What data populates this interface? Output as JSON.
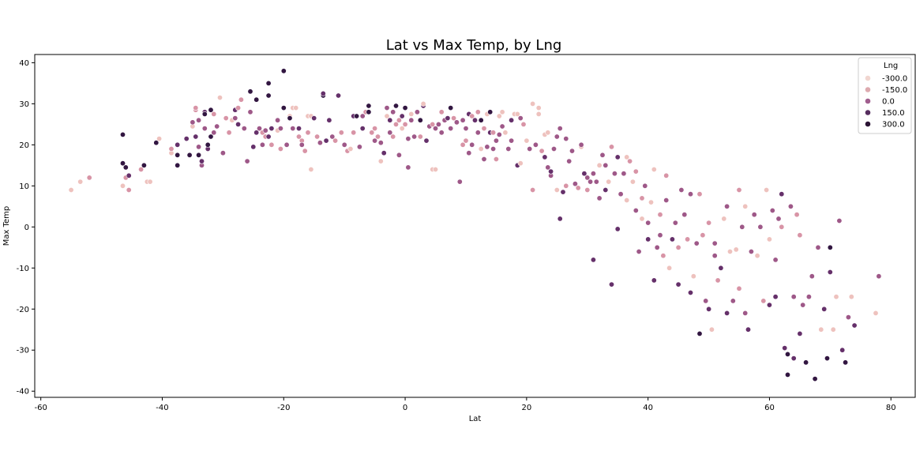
{
  "chart_data": {
    "type": "scatter",
    "title": "Lat vs Max Temp, by Lng",
    "xlabel": "Lat",
    "ylabel": "Max Temp",
    "xlim": [
      -61,
      84
    ],
    "ylim": [
      -41.5,
      42
    ],
    "x_ticks": [
      -60,
      -40,
      -20,
      0,
      20,
      40,
      60,
      80
    ],
    "y_ticks": [
      -40,
      -30,
      -20,
      -10,
      0,
      10,
      20,
      30,
      40
    ],
    "grid": false,
    "legend": {
      "title": "Lng",
      "placement": "top-right",
      "entries": [
        {
          "label": "-300.0",
          "color": "#f1d6d0"
        },
        {
          "label": "-150.0",
          "color": "#ddaaaf"
        },
        {
          "label": "0.0",
          "color": "#a05e8e"
        },
        {
          "label": "150.0",
          "color": "#562d5e"
        },
        {
          "label": "300.0",
          "color": "#2b1434"
        }
      ]
    },
    "colors": {
      "low": "#eec2be",
      "midlow": "#d894a6",
      "mid": "#9e5888",
      "midhigh": "#65306a",
      "high": "#321641"
    },
    "points": [
      [
        -55,
        9,
        -60
      ],
      [
        -53.5,
        11,
        -40
      ],
      [
        -52,
        12,
        -20
      ],
      [
        -46.5,
        10,
        -40
      ],
      [
        -46,
        12,
        20
      ],
      [
        -45.5,
        9,
        -10
      ],
      [
        -46.5,
        22.5,
        190
      ],
      [
        -46.5,
        15.5,
        170
      ],
      [
        -46,
        14.5,
        200
      ],
      [
        -45.5,
        12.5,
        150
      ],
      [
        -43.5,
        14,
        -20
      ],
      [
        -43,
        15,
        180
      ],
      [
        -42.5,
        11,
        -30
      ],
      [
        -42,
        11,
        -50
      ],
      [
        -41,
        20.5,
        180
      ],
      [
        -40.5,
        21.5,
        -60
      ],
      [
        -38.5,
        18,
        -30
      ],
      [
        -38.5,
        19,
        -10
      ],
      [
        -37.5,
        17.5,
        200
      ],
      [
        -37.5,
        15,
        180
      ],
      [
        -37.5,
        20,
        160
      ],
      [
        -36,
        21.5,
        160
      ],
      [
        -35.5,
        17.5,
        190
      ],
      [
        -35,
        24.5,
        -40
      ],
      [
        -35,
        25.5,
        80
      ],
      [
        -34.5,
        28.5,
        -20
      ],
      [
        -34.5,
        29,
        -20
      ],
      [
        -34.5,
        22,
        160
      ],
      [
        -34,
        26,
        40
      ],
      [
        -34,
        17.5,
        180
      ],
      [
        -34,
        19.5,
        60
      ],
      [
        -33.5,
        15,
        70
      ],
      [
        -33.5,
        16,
        100
      ],
      [
        -33,
        24,
        60
      ],
      [
        -33,
        28,
        140
      ],
      [
        -33,
        27.5,
        170
      ],
      [
        -32.5,
        19,
        150
      ],
      [
        -32.5,
        20,
        190
      ],
      [
        -32,
        28.5,
        170
      ],
      [
        -32,
        22,
        190
      ],
      [
        -31.5,
        27.5,
        -20
      ],
      [
        -31.5,
        23,
        40
      ],
      [
        -31,
        24.5,
        60
      ],
      [
        -30.5,
        31.5,
        -30
      ],
      [
        -30,
        18,
        90
      ],
      [
        -29.5,
        26.5,
        -10
      ],
      [
        -29,
        23,
        20
      ],
      [
        -28.5,
        26,
        -40
      ],
      [
        -28,
        28.5,
        150
      ],
      [
        -28,
        26.5,
        70
      ],
      [
        -27.5,
        29,
        -20
      ],
      [
        -27.5,
        25,
        130
      ],
      [
        -27,
        31,
        -10
      ],
      [
        -26.5,
        24,
        60
      ],
      [
        -26,
        16,
        40
      ],
      [
        -25.5,
        33,
        200
      ],
      [
        -25.5,
        28,
        90
      ],
      [
        -25,
        19.5,
        100
      ],
      [
        -24.5,
        23,
        120
      ],
      [
        -24.5,
        31,
        170
      ],
      [
        -24,
        24,
        60
      ],
      [
        -23.5,
        20,
        90
      ],
      [
        -23.5,
        23,
        -20
      ],
      [
        -23,
        22,
        20
      ],
      [
        -23,
        23.5,
        80
      ],
      [
        -22.5,
        35,
        180
      ],
      [
        -22.5,
        32,
        190
      ],
      [
        -22.5,
        22,
        100
      ],
      [
        -22,
        20,
        20
      ],
      [
        -22,
        24,
        150
      ],
      [
        -21,
        26,
        60
      ],
      [
        -21,
        23.5,
        -30
      ],
      [
        -20.5,
        19,
        10
      ],
      [
        -20.5,
        24,
        40
      ],
      [
        -20,
        38,
        190
      ],
      [
        -20,
        29,
        200
      ],
      [
        -19.5,
        20,
        40
      ],
      [
        -19,
        27,
        -70
      ],
      [
        -19,
        26.5,
        170
      ],
      [
        -18.5,
        24,
        40
      ],
      [
        -18.5,
        29,
        -80
      ],
      [
        -18,
        29,
        -50
      ],
      [
        -17.5,
        24,
        100
      ],
      [
        -17.5,
        22,
        20
      ],
      [
        -17,
        21,
        -20
      ],
      [
        -17,
        20,
        60
      ],
      [
        -16.5,
        18.5,
        30
      ],
      [
        -16,
        23,
        20
      ],
      [
        -16,
        27,
        -40
      ],
      [
        -15.5,
        27,
        -30
      ],
      [
        -15.5,
        14,
        -30
      ],
      [
        -15,
        26.5,
        160
      ],
      [
        -14.5,
        22,
        30
      ],
      [
        -14,
        20.5,
        90
      ],
      [
        -13.5,
        32,
        190
      ],
      [
        -13.5,
        32.5,
        160
      ],
      [
        -13,
        21,
        130
      ],
      [
        -12.5,
        26,
        120
      ],
      [
        -12,
        22,
        80
      ],
      [
        -11.5,
        21,
        20
      ],
      [
        -11,
        32,
        160
      ],
      [
        -10.5,
        23,
        -10
      ],
      [
        -10,
        20,
        60
      ],
      [
        -9.5,
        18.5,
        20
      ],
      [
        -9,
        19,
        -30
      ],
      [
        -8.5,
        23,
        -10
      ],
      [
        -8.5,
        27,
        160
      ],
      [
        -8,
        27,
        170
      ],
      [
        -7.5,
        19.5,
        40
      ],
      [
        -7,
        27,
        60
      ],
      [
        -7,
        24,
        110
      ],
      [
        -6.5,
        28,
        20
      ],
      [
        -6,
        28,
        170
      ],
      [
        -6,
        29.5,
        200
      ],
      [
        -5.5,
        23,
        20
      ],
      [
        -5,
        21,
        80
      ],
      [
        -5,
        24,
        -10
      ],
      [
        -4.5,
        22,
        10
      ],
      [
        -4,
        16,
        -30
      ],
      [
        -4,
        20.5,
        60
      ],
      [
        -3.5,
        18,
        110
      ],
      [
        -3,
        27,
        -40
      ],
      [
        -3,
        29,
        60
      ],
      [
        -2.5,
        23,
        40
      ],
      [
        -2.5,
        26,
        100
      ],
      [
        -2,
        22,
        20
      ],
      [
        -2,
        28,
        80
      ],
      [
        -1.5,
        25,
        -20
      ],
      [
        -1.5,
        29.5,
        180
      ],
      [
        -1,
        17.5,
        60
      ],
      [
        -1,
        26,
        20
      ],
      [
        -0.5,
        24,
        -50
      ],
      [
        -0.5,
        27,
        120
      ],
      [
        0,
        29,
        180
      ],
      [
        0,
        25,
        20
      ],
      [
        0.5,
        14.5,
        60
      ],
      [
        0.5,
        21.5,
        90
      ],
      [
        1,
        26,
        40
      ],
      [
        1,
        27.5,
        -50
      ],
      [
        1.5,
        22,
        40
      ],
      [
        2,
        28,
        70
      ],
      [
        2.5,
        22,
        -20
      ],
      [
        2.5,
        26,
        200
      ],
      [
        3,
        29.5,
        120
      ],
      [
        3,
        30,
        -40
      ],
      [
        3.5,
        21,
        100
      ],
      [
        4,
        24.5,
        60
      ],
      [
        4.5,
        14,
        -40
      ],
      [
        4.5,
        25,
        20
      ],
      [
        5,
        14,
        -50
      ],
      [
        5,
        24,
        80
      ],
      [
        5.5,
        25,
        60
      ],
      [
        6,
        23,
        40
      ],
      [
        6,
        28,
        20
      ],
      [
        6.5,
        26,
        80
      ],
      [
        7,
        26.5,
        140
      ],
      [
        7.5,
        24,
        40
      ],
      [
        7.5,
        29,
        170
      ],
      [
        8,
        26.5,
        20
      ],
      [
        8.5,
        25.5,
        60
      ],
      [
        9,
        11,
        50
      ],
      [
        9.5,
        20,
        10
      ],
      [
        9.5,
        26,
        60
      ],
      [
        10,
        21,
        -20
      ],
      [
        10,
        24,
        80
      ],
      [
        10.5,
        27.5,
        150
      ],
      [
        10.5,
        18,
        70
      ],
      [
        11,
        20,
        40
      ],
      [
        11,
        27,
        20
      ],
      [
        11.5,
        26,
        120
      ],
      [
        12,
        28,
        -10
      ],
      [
        12,
        23,
        60
      ],
      [
        12.5,
        19,
        -30
      ],
      [
        12.5,
        26,
        190
      ],
      [
        13,
        16.5,
        60
      ],
      [
        13,
        24,
        20
      ],
      [
        13.5,
        19.5,
        80
      ],
      [
        13.5,
        27.5,
        -40
      ],
      [
        14,
        23,
        100
      ],
      [
        14,
        28,
        170
      ],
      [
        14.5,
        19,
        60
      ],
      [
        14.5,
        23,
        -20
      ],
      [
        15,
        16.5,
        20
      ],
      [
        15,
        21,
        40
      ],
      [
        15.5,
        22.5,
        80
      ],
      [
        15.5,
        27,
        -60
      ],
      [
        16,
        24.5,
        60
      ],
      [
        16,
        28,
        -50
      ],
      [
        16.5,
        23,
        -30
      ],
      [
        17,
        19,
        40
      ],
      [
        17.5,
        26,
        150
      ],
      [
        17.5,
        21,
        80
      ],
      [
        18,
        27.5,
        -40
      ],
      [
        18.5,
        15,
        120
      ],
      [
        18.5,
        27.5,
        -60
      ],
      [
        19,
        15.5,
        -50
      ],
      [
        19,
        26.5,
        60
      ],
      [
        19.5,
        25,
        20
      ],
      [
        20,
        21,
        -40
      ],
      [
        20.5,
        19,
        60
      ],
      [
        21,
        30,
        -70
      ],
      [
        21,
        9,
        -10
      ],
      [
        21.5,
        20,
        80
      ],
      [
        22,
        29,
        -60
      ],
      [
        22,
        27.5,
        -70
      ],
      [
        22.5,
        18.5,
        20
      ],
      [
        23,
        22.5,
        -30
      ],
      [
        23,
        17,
        100
      ],
      [
        23.5,
        14.5,
        60
      ],
      [
        23.5,
        23,
        -60
      ],
      [
        24,
        12.5,
        40
      ],
      [
        24,
        13.5,
        150
      ],
      [
        24.5,
        19,
        80
      ],
      [
        25,
        22,
        60
      ],
      [
        25,
        9,
        -30
      ],
      [
        25.5,
        2,
        110
      ],
      [
        25.5,
        24,
        80
      ],
      [
        26,
        8.5,
        120
      ],
      [
        26.5,
        10,
        -20
      ],
      [
        26.5,
        21.5,
        60
      ],
      [
        27,
        16,
        40
      ],
      [
        27.5,
        18.5,
        60
      ],
      [
        28,
        10.5,
        80
      ],
      [
        28.5,
        9.5,
        20
      ],
      [
        29,
        19.5,
        -40
      ],
      [
        29,
        20,
        90
      ],
      [
        29.5,
        13,
        150
      ],
      [
        30,
        12,
        60
      ],
      [
        30,
        9,
        -10
      ],
      [
        30.5,
        11,
        40
      ],
      [
        31,
        13,
        60
      ],
      [
        31,
        -8,
        120
      ],
      [
        31.5,
        11,
        80
      ],
      [
        32,
        15,
        -30
      ],
      [
        32,
        7,
        60
      ],
      [
        32.5,
        17.5,
        40
      ],
      [
        33,
        15,
        60
      ],
      [
        33,
        9,
        100
      ],
      [
        33.5,
        11,
        -40
      ],
      [
        34,
        -14,
        120
      ],
      [
        34,
        19.5,
        -20
      ],
      [
        34.5,
        13,
        40
      ],
      [
        35,
        -0.5,
        100
      ],
      [
        35,
        17,
        150
      ],
      [
        35.5,
        8,
        60
      ],
      [
        36,
        13,
        80
      ],
      [
        36.5,
        17,
        -50
      ],
      [
        36.5,
        6.5,
        -30
      ],
      [
        37,
        16,
        20
      ],
      [
        37.5,
        11,
        -40
      ],
      [
        38,
        13.5,
        -20
      ],
      [
        38,
        4,
        60
      ],
      [
        38.5,
        -6,
        80
      ],
      [
        39,
        2,
        -30
      ],
      [
        39,
        7,
        20
      ],
      [
        39.5,
        10,
        60
      ],
      [
        40,
        -3,
        100
      ],
      [
        40,
        1,
        40
      ],
      [
        40.5,
        6,
        -40
      ],
      [
        41,
        -13,
        120
      ],
      [
        41,
        14,
        -30
      ],
      [
        41.5,
        -5,
        60
      ],
      [
        42,
        3,
        20
      ],
      [
        42,
        -2,
        80
      ],
      [
        42.5,
        -7,
        -20
      ],
      [
        43,
        6.5,
        60
      ],
      [
        43,
        12.5,
        20
      ],
      [
        43.5,
        -10,
        -40
      ],
      [
        44,
        -3,
        100
      ],
      [
        44.5,
        1,
        60
      ],
      [
        45,
        -14,
        120
      ],
      [
        45,
        -5,
        -20
      ],
      [
        45.5,
        9,
        40
      ],
      [
        46,
        3,
        80
      ],
      [
        46.5,
        -3,
        20
      ],
      [
        47,
        -16,
        140
      ],
      [
        47,
        8,
        60
      ],
      [
        47.5,
        -12,
        -40
      ],
      [
        48,
        -4,
        80
      ],
      [
        48.5,
        -26,
        180
      ],
      [
        48.5,
        8,
        -10
      ],
      [
        49,
        -2,
        -20
      ],
      [
        49.5,
        -18,
        60
      ],
      [
        50,
        1,
        20
      ],
      [
        50,
        -20,
        120
      ],
      [
        50.5,
        -25,
        -30
      ],
      [
        51,
        -7,
        60
      ],
      [
        51,
        -4,
        40
      ],
      [
        51.5,
        -13,
        -20
      ],
      [
        52,
        -10,
        120
      ],
      [
        52.5,
        2,
        -30
      ],
      [
        53,
        -21,
        100
      ],
      [
        53,
        5,
        40
      ],
      [
        53.5,
        -6,
        -40
      ],
      [
        54,
        -18,
        80
      ],
      [
        54.5,
        -5.5,
        -60
      ],
      [
        55,
        9,
        -20
      ],
      [
        55,
        -15,
        20
      ],
      [
        55.5,
        0,
        60
      ],
      [
        56,
        -21,
        80
      ],
      [
        56,
        5,
        -40
      ],
      [
        56.5,
        -25,
        120
      ],
      [
        57,
        -6,
        60
      ],
      [
        57.5,
        3,
        40
      ],
      [
        58,
        -7,
        -30
      ],
      [
        58.5,
        0,
        80
      ],
      [
        59,
        -18,
        20
      ],
      [
        59.5,
        9,
        -60
      ],
      [
        60,
        -19,
        120
      ],
      [
        60,
        -3,
        -30
      ],
      [
        60.5,
        4,
        40
      ],
      [
        61,
        -17,
        150
      ],
      [
        61,
        -8,
        60
      ],
      [
        61.5,
        2,
        80
      ],
      [
        62,
        0,
        -20
      ],
      [
        62,
        8,
        120
      ],
      [
        62.5,
        -29.5,
        120
      ],
      [
        63,
        -36,
        200
      ],
      [
        63,
        -31,
        180
      ],
      [
        63.5,
        5,
        60
      ],
      [
        64,
        -32,
        160
      ],
      [
        64,
        -17,
        40
      ],
      [
        64.5,
        3,
        20
      ],
      [
        65,
        -2,
        -20
      ],
      [
        65,
        -26,
        120
      ],
      [
        65.5,
        -19,
        80
      ],
      [
        66,
        -33,
        200
      ],
      [
        66.5,
        -17,
        40
      ],
      [
        67,
        -12,
        80
      ],
      [
        67.5,
        -37,
        190
      ],
      [
        68,
        -5,
        60
      ],
      [
        68.5,
        -25,
        -30
      ],
      [
        69,
        -20,
        160
      ],
      [
        69.5,
        -32,
        180
      ],
      [
        70,
        -5,
        200
      ],
      [
        70,
        -11,
        160
      ],
      [
        70.5,
        -25,
        -40
      ],
      [
        71,
        -17,
        -30
      ],
      [
        71.5,
        1.5,
        60
      ],
      [
        72,
        -30,
        150
      ],
      [
        72.5,
        -33,
        180
      ],
      [
        73,
        -22,
        80
      ],
      [
        73.5,
        -17,
        -40
      ],
      [
        74,
        -24,
        120
      ],
      [
        77.5,
        -21,
        -40
      ],
      [
        78,
        -12,
        60
      ]
    ]
  }
}
